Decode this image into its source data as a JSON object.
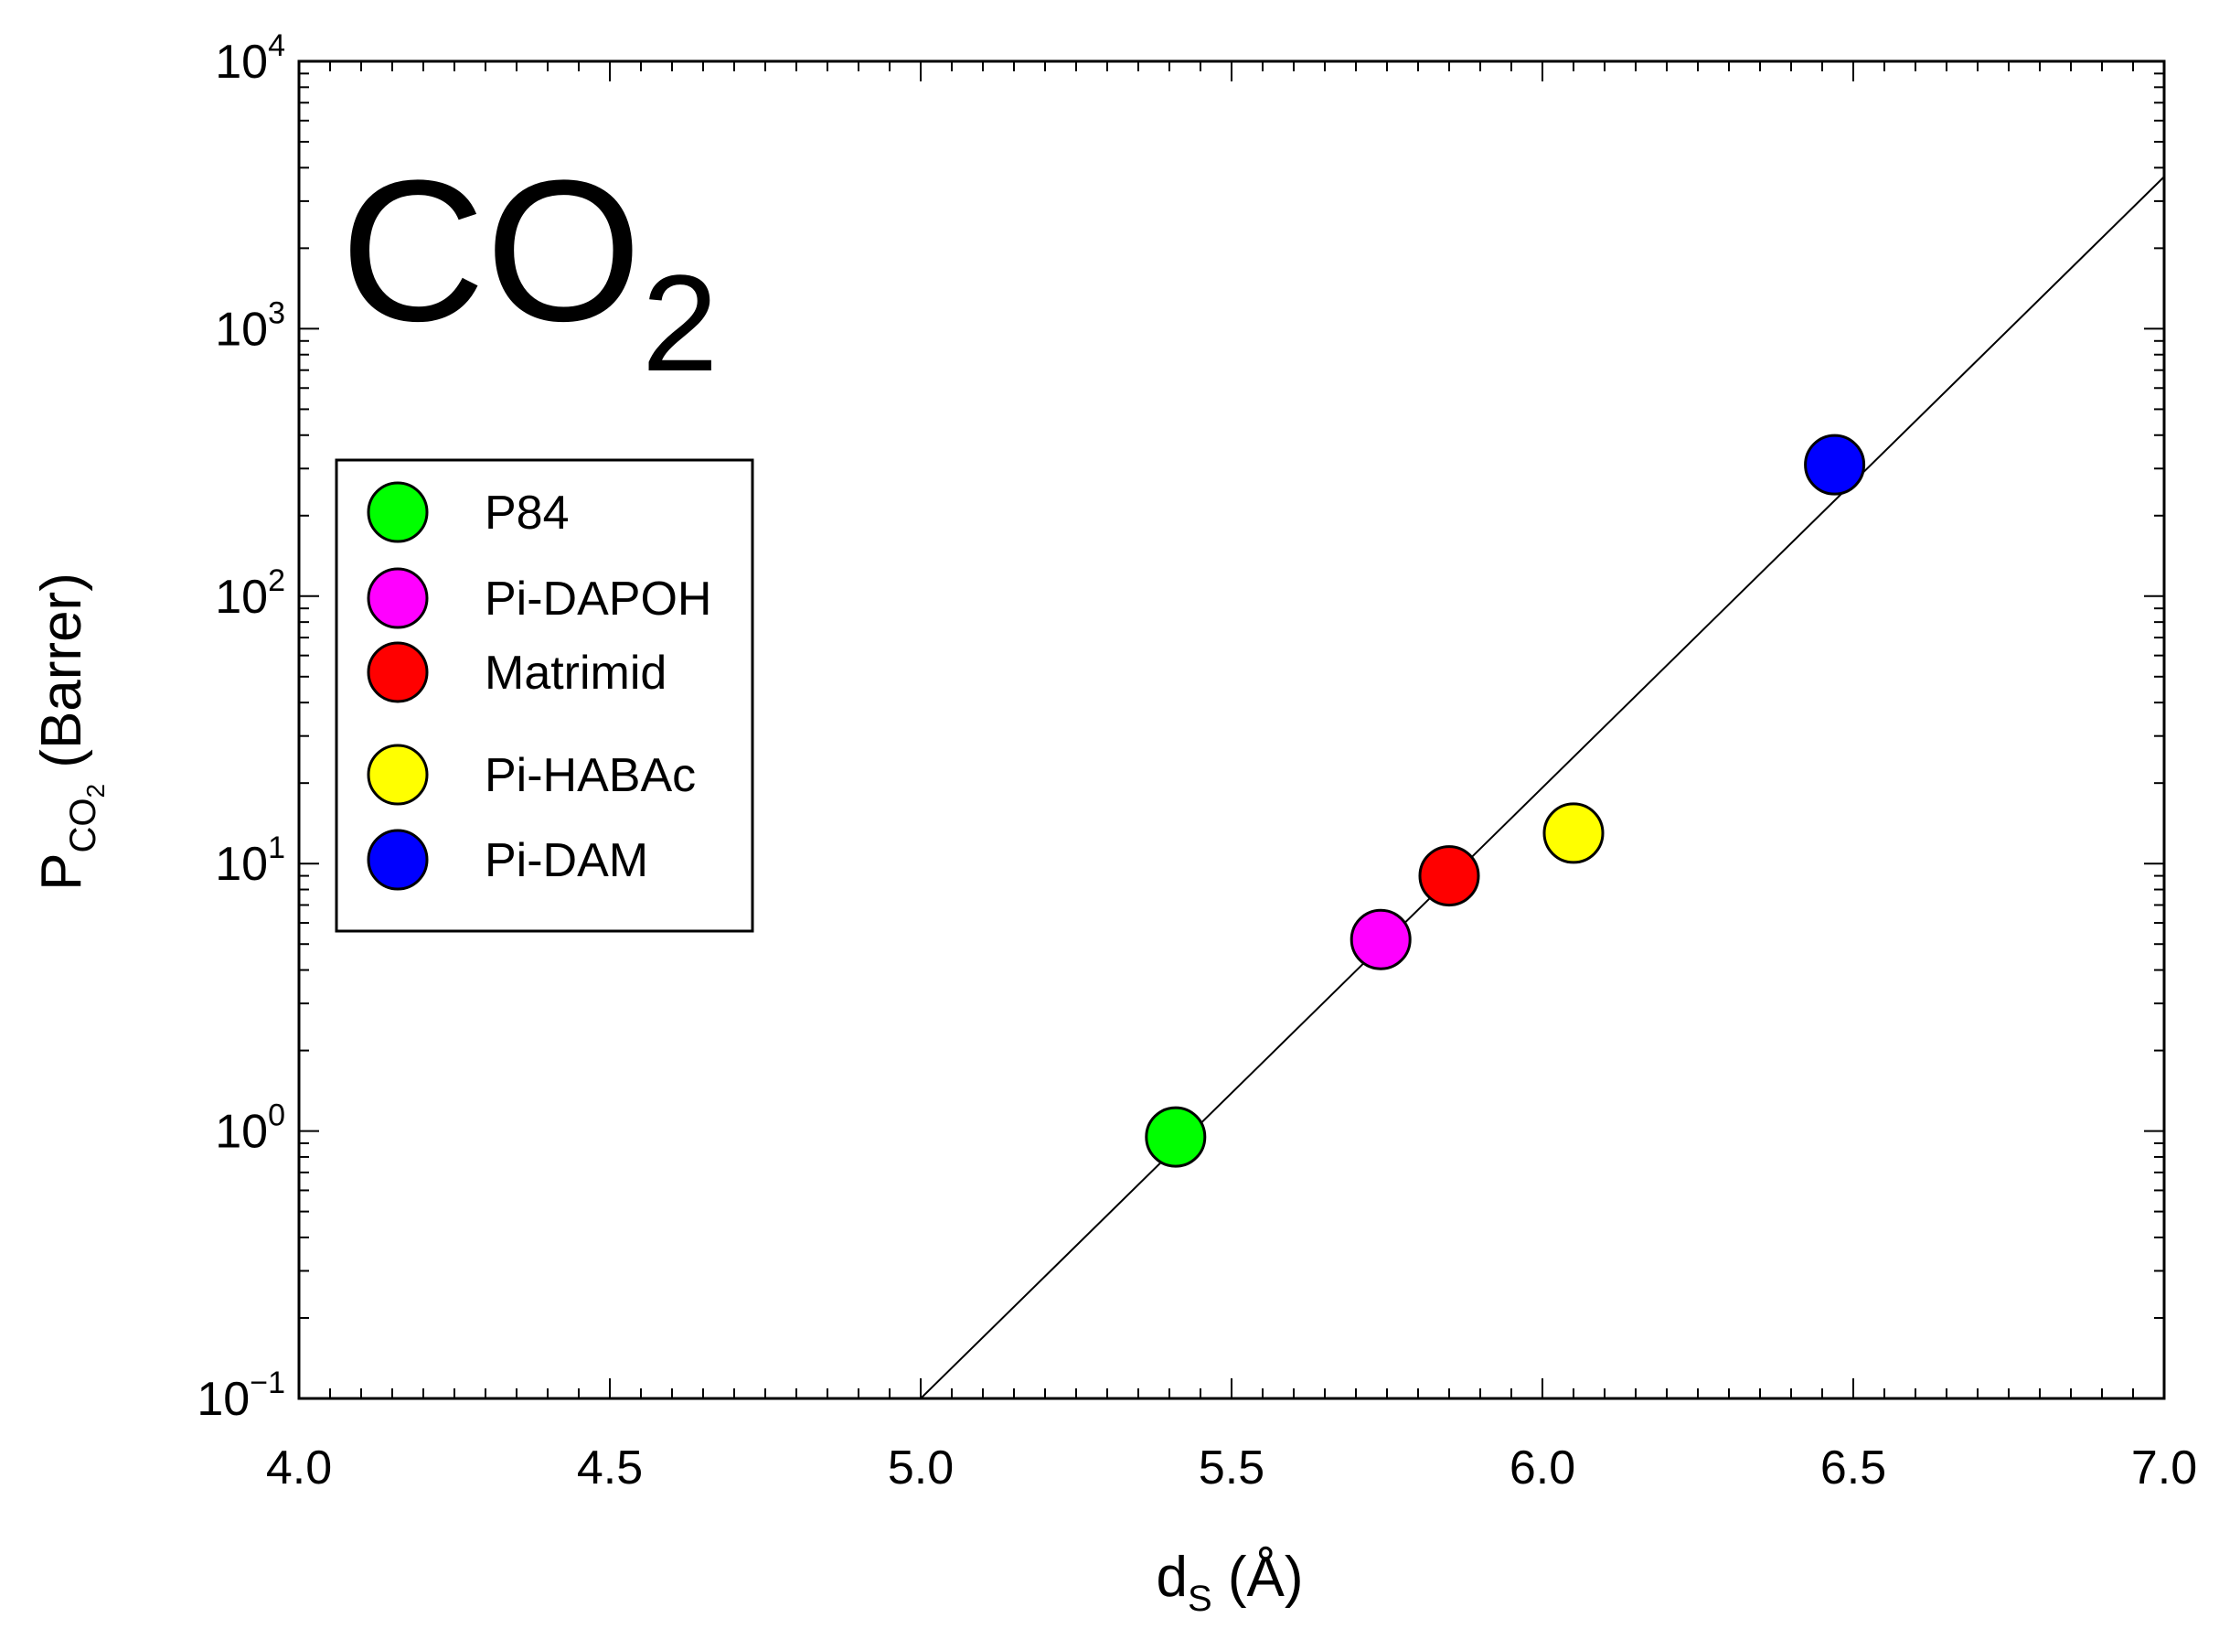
{
  "chart_data": {
    "type": "scatter",
    "title": "",
    "annotation": {
      "main": "CO",
      "subscript": "2"
    },
    "xlabel": {
      "main": "d",
      "subscript": "S",
      "rest": " (Å)"
    },
    "ylabel": {
      "main": "P",
      "subscript": "CO",
      "subscript2": "2",
      "rest": " (Barrer)"
    },
    "xlim": [
      4.0,
      7.0
    ],
    "ylim": [
      0.1,
      10000
    ],
    "yscale": "log",
    "grid": false,
    "legend_placement": "upper-left",
    "x_ticks": [
      "4.0",
      "4.5",
      "5.0",
      "5.5",
      "6.0",
      "6.5",
      "7.0"
    ],
    "y_ticks": [
      {
        "base": "10",
        "exp": "−1"
      },
      {
        "base": "10",
        "exp": "0"
      },
      {
        "base": "10",
        "exp": "1"
      },
      {
        "base": "10",
        "exp": "2"
      },
      {
        "base": "10",
        "exp": "3"
      },
      {
        "base": "10",
        "exp": "4"
      }
    ],
    "series": [
      {
        "name": "P84",
        "color": "#00ff00",
        "x": 5.41,
        "y": 0.95
      },
      {
        "name": "Pi-DAPOH",
        "color": "#ff00ff",
        "x": 5.74,
        "y": 5.2
      },
      {
        "name": "Matrimid",
        "color": "#ff0000",
        "x": 5.85,
        "y": 9.0
      },
      {
        "name": "Pi-HABAc",
        "color": "#ffff00",
        "x": 6.05,
        "y": 13
      },
      {
        "name": "Pi-DAM",
        "color": "#0000ff",
        "x": 6.47,
        "y": 310
      }
    ],
    "fit_line": {
      "color": "#000000",
      "x": [
        5.0,
        7.0
      ],
      "y": [
        0.1,
        3700
      ]
    }
  }
}
